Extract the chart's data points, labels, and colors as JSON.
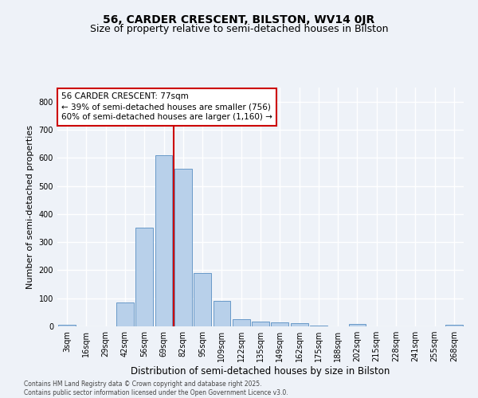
{
  "title": "56, CARDER CRESCENT, BILSTON, WV14 0JR",
  "subtitle": "Size of property relative to semi-detached houses in Bilston",
  "xlabel": "Distribution of semi-detached houses by size in Bilston",
  "ylabel": "Number of semi-detached properties",
  "bar_labels": [
    "3sqm",
    "16sqm",
    "29sqm",
    "42sqm",
    "56sqm",
    "69sqm",
    "82sqm",
    "95sqm",
    "109sqm",
    "122sqm",
    "135sqm",
    "149sqm",
    "162sqm",
    "175sqm",
    "188sqm",
    "202sqm",
    "215sqm",
    "228sqm",
    "241sqm",
    "255sqm",
    "268sqm"
  ],
  "bar_values": [
    5,
    0,
    0,
    85,
    350,
    610,
    560,
    190,
    90,
    25,
    18,
    15,
    12,
    3,
    0,
    8,
    0,
    0,
    0,
    0,
    5
  ],
  "bar_color": "#b8d0ea",
  "bar_edge_color": "#6899c8",
  "vline_color": "#cc0000",
  "annotation_title": "56 CARDER CRESCENT: 77sqm",
  "annotation_line1": "← 39% of semi-detached houses are smaller (756)",
  "annotation_line2": "60% of semi-detached houses are larger (1,160) →",
  "annotation_box_edgecolor": "#cc0000",
  "ylim": [
    0,
    850
  ],
  "yticks": [
    0,
    100,
    200,
    300,
    400,
    500,
    600,
    700,
    800
  ],
  "footer_line1": "Contains HM Land Registry data © Crown copyright and database right 2025.",
  "footer_line2": "Contains public sector information licensed under the Open Government Licence v3.0.",
  "background_color": "#eef2f8",
  "grid_color": "#ffffff",
  "title_fontsize": 10,
  "subtitle_fontsize": 9,
  "ylabel_fontsize": 8,
  "xlabel_fontsize": 8.5,
  "tick_fontsize": 7,
  "annotation_fontsize": 7.5,
  "footer_fontsize": 5.5
}
